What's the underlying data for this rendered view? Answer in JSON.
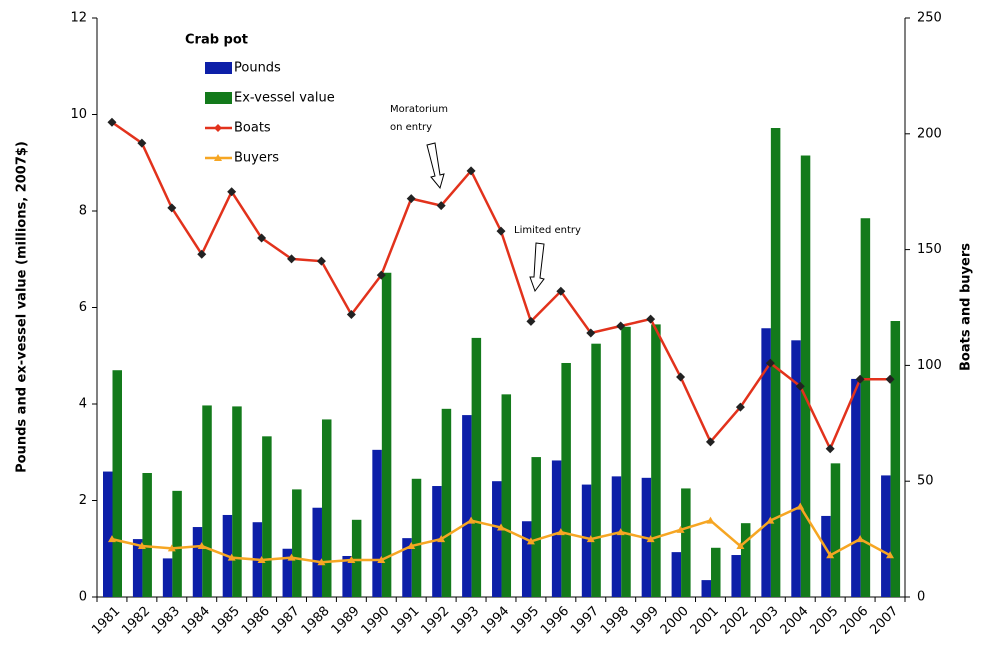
{
  "chart_data": {
    "type": "bar-line",
    "legend_title": "Crab pot",
    "ylabel": "Pounds and ex-vessel value (millions, 2007$)",
    "y2label": "Boats and buyers",
    "categories": [
      "1981",
      "1982",
      "1983",
      "1984",
      "1985",
      "1986",
      "1987",
      "1988",
      "1989",
      "1990",
      "1991",
      "1992",
      "1993",
      "1994",
      "1995",
      "1996",
      "1997",
      "1998",
      "1999",
      "2000",
      "2001",
      "2002",
      "2003",
      "2004",
      "2005",
      "2006",
      "2007"
    ],
    "series": [
      {
        "name": "Pounds",
        "type": "bar",
        "color": "#0d1fa8",
        "values": [
          2.6,
          1.2,
          0.8,
          1.45,
          1.7,
          1.55,
          1.0,
          1.85,
          0.85,
          3.05,
          1.22,
          2.3,
          3.77,
          2.4,
          1.57,
          2.83,
          2.33,
          2.5,
          2.47,
          0.93,
          0.35,
          0.87,
          5.57,
          5.32,
          1.68,
          4.52,
          2.52
        ]
      },
      {
        "name": "Ex-vessel value",
        "type": "bar",
        "color": "#137a1b",
        "values": [
          4.7,
          2.57,
          2.2,
          3.97,
          3.95,
          3.33,
          2.23,
          3.68,
          1.6,
          6.72,
          2.45,
          3.9,
          5.37,
          4.2,
          2.9,
          4.85,
          5.25,
          5.6,
          5.65,
          2.25,
          1.02,
          1.53,
          9.72,
          9.15,
          2.77,
          7.85,
          5.72
        ]
      },
      {
        "name": "Boats",
        "type": "line",
        "axis": "y2",
        "color": "#e2321c",
        "marker": "diamond",
        "values": [
          205,
          196,
          168,
          148,
          175,
          155,
          146,
          145,
          122,
          139,
          172,
          169,
          184,
          158,
          119,
          132,
          114,
          117,
          120,
          95,
          67,
          82,
          101,
          91,
          64,
          94,
          94
        ]
      },
      {
        "name": "Buyers",
        "type": "line",
        "axis": "y2",
        "color": "#f6a623",
        "marker": "triangle",
        "values": [
          25,
          22,
          21,
          22,
          17,
          16,
          17,
          15,
          16,
          16,
          22,
          25,
          33,
          30,
          24,
          28,
          25,
          28,
          25,
          29,
          33,
          22,
          33,
          39,
          18,
          25,
          18
        ]
      }
    ],
    "ylim": [
      0,
      12
    ],
    "yticks": [
      0,
      2,
      4,
      6,
      8,
      10,
      12
    ],
    "y2lim": [
      0,
      250
    ],
    "y2ticks": [
      0,
      50,
      100,
      150,
      200,
      250
    ],
    "annotations": [
      {
        "lines": [
          "Moratorium",
          "on entry"
        ]
      },
      {
        "lines": [
          "Limited entry"
        ]
      }
    ]
  }
}
